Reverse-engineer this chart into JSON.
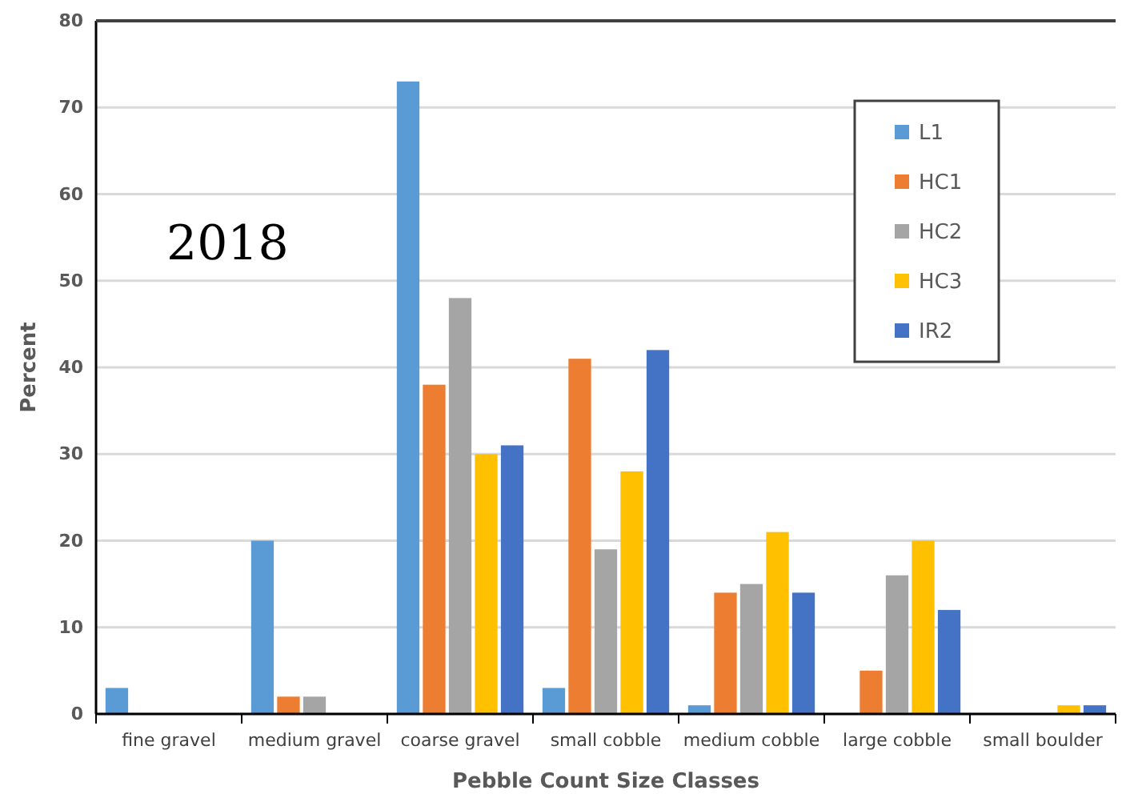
{
  "chart_data": {
    "type": "bar",
    "xlabel": "Pebble Count Size Classes",
    "ylabel": "Percent",
    "annotations": [
      "2018"
    ],
    "categories": [
      "fine gravel",
      "medium gravel",
      "coarse gravel",
      "small cobble",
      "medium cobble",
      "large cobble",
      "small boulder"
    ],
    "series": [
      {
        "name": "L1",
        "color": "#5b9bd5",
        "values": [
          3,
          20,
          73,
          3,
          1,
          0,
          0
        ]
      },
      {
        "name": "HC1",
        "color": "#ed7d31",
        "values": [
          0,
          2,
          38,
          41,
          14,
          5,
          0
        ]
      },
      {
        "name": "HC2",
        "color": "#a5a5a5",
        "values": [
          0,
          2,
          48,
          19,
          15,
          16,
          0
        ]
      },
      {
        "name": "HC3",
        "color": "#ffc000",
        "values": [
          0,
          0,
          30,
          28,
          21,
          20,
          1
        ]
      },
      {
        "name": "IR2",
        "color": "#4472c4",
        "values": [
          0,
          0,
          31,
          42,
          14,
          12,
          1
        ]
      }
    ],
    "ylim": [
      0,
      80
    ],
    "yticks": [
      0,
      10,
      20,
      30,
      40,
      50,
      60,
      70,
      80
    ],
    "grid": "y",
    "legend": "top right"
  }
}
